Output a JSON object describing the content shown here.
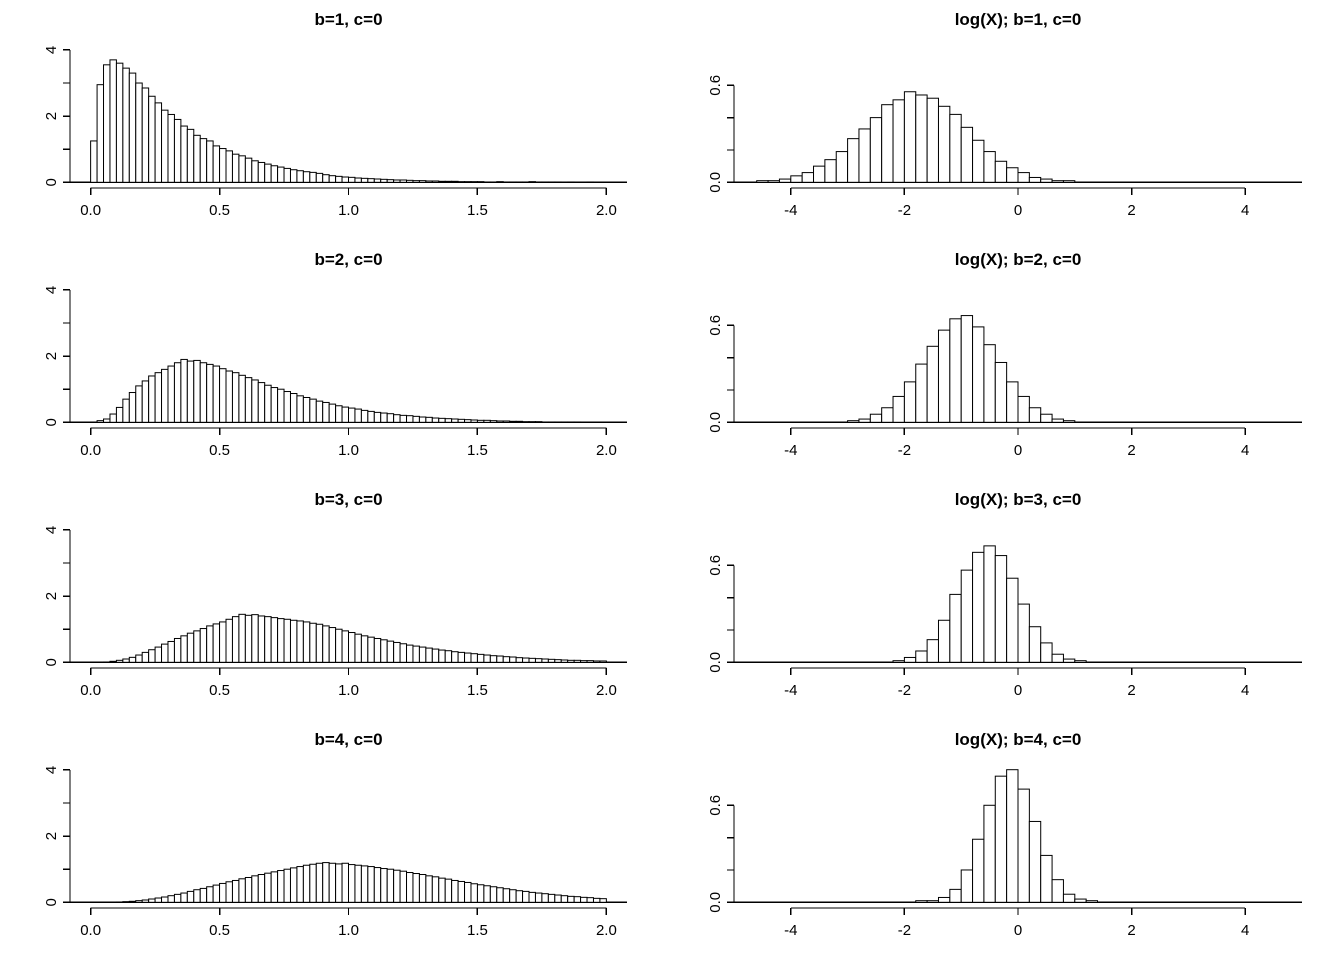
{
  "page": {
    "background": "#ffffff",
    "foreground": "#000000",
    "bar_fill": "#ffffff",
    "bar_stroke": "#000000",
    "layout_note": "4x2 grid of base-R style histograms"
  },
  "chart_data": [
    {
      "title": "b=1, c=0",
      "type": "bar",
      "style": "histogram",
      "grid": false,
      "legend": null,
      "x": {
        "lim": [
          -0.08,
          2.08
        ],
        "ticks": [
          0,
          0.5,
          1,
          1.5,
          2
        ],
        "tick_labels": [
          "0.0",
          "0.5",
          "1.0",
          "1.5",
          "2.0"
        ]
      },
      "y": {
        "lim": [
          0,
          4.3
        ],
        "ticks": [
          0,
          1,
          2,
          3,
          4
        ],
        "tick_labels": [
          "0",
          "",
          "2",
          "",
          "4"
        ]
      },
      "bins": {
        "start": 0,
        "width": 0.025
      },
      "values": [
        1.25,
        2.95,
        3.55,
        3.7,
        3.6,
        3.45,
        3.3,
        3.0,
        2.85,
        2.6,
        2.4,
        2.18,
        2.05,
        1.9,
        1.7,
        1.6,
        1.42,
        1.32,
        1.25,
        1.1,
        1.02,
        0.95,
        0.85,
        0.8,
        0.73,
        0.65,
        0.6,
        0.55,
        0.5,
        0.46,
        0.42,
        0.38,
        0.35,
        0.32,
        0.3,
        0.27,
        0.23,
        0.2,
        0.18,
        0.16,
        0.15,
        0.13,
        0.12,
        0.11,
        0.1,
        0.09,
        0.08,
        0.07,
        0.07,
        0.06,
        0.05,
        0.05,
        0.04,
        0.04,
        0.03,
        0.03,
        0.03,
        0.02,
        0.02,
        0.02,
        0.02,
        0.01,
        0.01,
        0.02,
        0.01,
        0.01,
        0.01,
        0.01,
        0.02,
        0.01,
        0.01,
        0.01,
        0.01,
        0,
        0.01,
        0,
        0,
        0.01,
        0,
        0
      ]
    },
    {
      "title": "log(X); b=1, c=0",
      "type": "bar",
      "style": "histogram",
      "grid": false,
      "legend": null,
      "x": {
        "lim": [
          -5,
          5
        ],
        "ticks": [
          -4,
          -2,
          0,
          2,
          4
        ],
        "tick_labels": [
          "-4",
          "-2",
          "0",
          "2",
          "4"
        ]
      },
      "y": {
        "lim": [
          0,
          0.88
        ],
        "ticks": [
          0,
          0.2,
          0.4,
          0.6
        ],
        "tick_labels": [
          "0.0",
          "",
          "",
          "0.6"
        ]
      },
      "bins": {
        "start": -4.6,
        "width": 0.2
      },
      "values": [
        0.01,
        0.01,
        0.02,
        0.04,
        0.06,
        0.1,
        0.14,
        0.19,
        0.27,
        0.33,
        0.4,
        0.48,
        0.51,
        0.56,
        0.54,
        0.52,
        0.47,
        0.42,
        0.34,
        0.26,
        0.19,
        0.13,
        0.09,
        0.06,
        0.03,
        0.02,
        0.01,
        0.01,
        0,
        0
      ]
    },
    {
      "title": "b=2, c=0",
      "type": "bar",
      "style": "histogram",
      "grid": false,
      "legend": null,
      "x": {
        "lim": [
          -0.08,
          2.08
        ],
        "ticks": [
          0,
          0.5,
          1,
          1.5,
          2
        ],
        "tick_labels": [
          "0.0",
          "0.5",
          "1.0",
          "1.5",
          "2.0"
        ]
      },
      "y": {
        "lim": [
          0,
          4.3
        ],
        "ticks": [
          0,
          1,
          2,
          3,
          4
        ],
        "tick_labels": [
          "0",
          "",
          "2",
          "",
          "4"
        ]
      },
      "bins": {
        "start": 0,
        "width": 0.025
      },
      "values": [
        0,
        0.05,
        0.1,
        0.25,
        0.45,
        0.7,
        0.9,
        1.1,
        1.25,
        1.4,
        1.5,
        1.6,
        1.7,
        1.8,
        1.9,
        1.85,
        1.87,
        1.8,
        1.75,
        1.7,
        1.62,
        1.55,
        1.5,
        1.42,
        1.35,
        1.28,
        1.2,
        1.12,
        1.05,
        1.0,
        0.93,
        0.87,
        0.8,
        0.75,
        0.7,
        0.64,
        0.6,
        0.55,
        0.5,
        0.46,
        0.43,
        0.4,
        0.36,
        0.33,
        0.3,
        0.28,
        0.26,
        0.23,
        0.21,
        0.2,
        0.18,
        0.16,
        0.15,
        0.13,
        0.12,
        0.11,
        0.1,
        0.09,
        0.08,
        0.07,
        0.06,
        0.06,
        0.05,
        0.04,
        0.04,
        0.03,
        0.03,
        0.02,
        0.02,
        0.02,
        0.01,
        0.01,
        0.01,
        0.01,
        0.01,
        0.01,
        0,
        0,
        0,
        0
      ]
    },
    {
      "title": "log(X); b=2, c=0",
      "type": "bar",
      "style": "histogram",
      "grid": false,
      "legend": null,
      "x": {
        "lim": [
          -5,
          5
        ],
        "ticks": [
          -4,
          -2,
          0,
          2,
          4
        ],
        "tick_labels": [
          "-4",
          "-2",
          "0",
          "2",
          "4"
        ]
      },
      "y": {
        "lim": [
          0,
          0.88
        ],
        "ticks": [
          0,
          0.2,
          0.4,
          0.6
        ],
        "tick_labels": [
          "0.0",
          "",
          "",
          "0.6"
        ]
      },
      "bins": {
        "start": -4.6,
        "width": 0.2
      },
      "values": [
        0,
        0,
        0,
        0,
        0,
        0,
        0,
        0,
        0.01,
        0.02,
        0.05,
        0.09,
        0.16,
        0.25,
        0.36,
        0.47,
        0.57,
        0.64,
        0.66,
        0.59,
        0.48,
        0.37,
        0.25,
        0.16,
        0.09,
        0.05,
        0.02,
        0.01,
        0,
        0
      ]
    },
    {
      "title": "b=3, c=0",
      "type": "bar",
      "style": "histogram",
      "grid": false,
      "legend": null,
      "x": {
        "lim": [
          -0.08,
          2.08
        ],
        "ticks": [
          0,
          0.5,
          1,
          1.5,
          2
        ],
        "tick_labels": [
          "0.0",
          "0.5",
          "1.0",
          "1.5",
          "2.0"
        ]
      },
      "y": {
        "lim": [
          0,
          4.3
        ],
        "ticks": [
          0,
          1,
          2,
          3,
          4
        ],
        "tick_labels": [
          "0",
          "",
          "2",
          "",
          "4"
        ]
      },
      "bins": {
        "start": 0,
        "width": 0.025
      },
      "values": [
        0,
        0,
        0.01,
        0.03,
        0.06,
        0.1,
        0.15,
        0.22,
        0.3,
        0.38,
        0.46,
        0.55,
        0.63,
        0.72,
        0.8,
        0.88,
        0.95,
        1.02,
        1.1,
        1.16,
        1.22,
        1.3,
        1.38,
        1.45,
        1.42,
        1.44,
        1.4,
        1.38,
        1.35,
        1.32,
        1.3,
        1.27,
        1.25,
        1.22,
        1.18,
        1.15,
        1.1,
        1.05,
        1.0,
        0.95,
        0.9,
        0.85,
        0.8,
        0.76,
        0.72,
        0.68,
        0.64,
        0.6,
        0.56,
        0.52,
        0.49,
        0.46,
        0.43,
        0.4,
        0.37,
        0.35,
        0.32,
        0.3,
        0.28,
        0.26,
        0.24,
        0.22,
        0.2,
        0.19,
        0.17,
        0.16,
        0.14,
        0.13,
        0.12,
        0.11,
        0.1,
        0.09,
        0.08,
        0.07,
        0.06,
        0.06,
        0.05,
        0.05,
        0.04,
        0.04
      ]
    },
    {
      "title": "log(X); b=3, c=0",
      "type": "bar",
      "style": "histogram",
      "grid": false,
      "legend": null,
      "x": {
        "lim": [
          -5,
          5
        ],
        "ticks": [
          -4,
          -2,
          0,
          2,
          4
        ],
        "tick_labels": [
          "-4",
          "-2",
          "0",
          "2",
          "4"
        ]
      },
      "y": {
        "lim": [
          0,
          0.88
        ],
        "ticks": [
          0,
          0.2,
          0.4,
          0.6
        ],
        "tick_labels": [
          "0.0",
          "",
          "",
          "0.6"
        ]
      },
      "bins": {
        "start": -4.6,
        "width": 0.2
      },
      "values": [
        0,
        0,
        0,
        0,
        0,
        0,
        0,
        0,
        0,
        0,
        0,
        0,
        0.01,
        0.03,
        0.07,
        0.14,
        0.26,
        0.42,
        0.57,
        0.68,
        0.72,
        0.66,
        0.52,
        0.36,
        0.22,
        0.12,
        0.05,
        0.02,
        0.01,
        0
      ]
    },
    {
      "title": "b=4, c=0",
      "type": "bar",
      "style": "histogram",
      "grid": false,
      "legend": null,
      "x": {
        "lim": [
          -0.08,
          2.08
        ],
        "ticks": [
          0,
          0.5,
          1,
          1.5,
          2
        ],
        "tick_labels": [
          "0.0",
          "0.5",
          "1.0",
          "1.5",
          "2.0"
        ]
      },
      "y": {
        "lim": [
          0,
          4.3
        ],
        "ticks": [
          0,
          1,
          2,
          3,
          4
        ],
        "tick_labels": [
          "0",
          "",
          "2",
          "",
          "4"
        ]
      },
      "bins": {
        "start": 0,
        "width": 0.025
      },
      "values": [
        0,
        0,
        0,
        0,
        0.01,
        0.02,
        0.03,
        0.05,
        0.07,
        0.1,
        0.13,
        0.16,
        0.2,
        0.24,
        0.28,
        0.33,
        0.38,
        0.42,
        0.47,
        0.52,
        0.57,
        0.62,
        0.66,
        0.71,
        0.75,
        0.8,
        0.84,
        0.88,
        0.92,
        0.96,
        1.0,
        1.04,
        1.08,
        1.12,
        1.15,
        1.18,
        1.2,
        1.18,
        1.16,
        1.18,
        1.14,
        1.12,
        1.1,
        1.08,
        1.05,
        1.02,
        1.0,
        0.97,
        0.94,
        0.9,
        0.87,
        0.84,
        0.8,
        0.77,
        0.73,
        0.7,
        0.66,
        0.63,
        0.6,
        0.56,
        0.53,
        0.5,
        0.47,
        0.44,
        0.41,
        0.38,
        0.35,
        0.33,
        0.3,
        0.28,
        0.26,
        0.24,
        0.22,
        0.2,
        0.18,
        0.17,
        0.15,
        0.14,
        0.12,
        0.11
      ]
    },
    {
      "title": "log(X); b=4, c=0",
      "type": "bar",
      "style": "histogram",
      "grid": false,
      "legend": null,
      "x": {
        "lim": [
          -5,
          5
        ],
        "ticks": [
          -4,
          -2,
          0,
          2,
          4
        ],
        "tick_labels": [
          "-4",
          "-2",
          "0",
          "2",
          "4"
        ]
      },
      "y": {
        "lim": [
          0,
          0.88
        ],
        "ticks": [
          0,
          0.2,
          0.4,
          0.6
        ],
        "tick_labels": [
          "0.0",
          "",
          "",
          "0.6"
        ]
      },
      "bins": {
        "start": -4.6,
        "width": 0.2
      },
      "values": [
        0,
        0,
        0,
        0,
        0,
        0,
        0,
        0,
        0,
        0,
        0,
        0,
        0,
        0,
        0.01,
        0.01,
        0.03,
        0.08,
        0.2,
        0.39,
        0.6,
        0.78,
        0.82,
        0.7,
        0.5,
        0.29,
        0.14,
        0.05,
        0.02,
        0.01
      ]
    }
  ]
}
